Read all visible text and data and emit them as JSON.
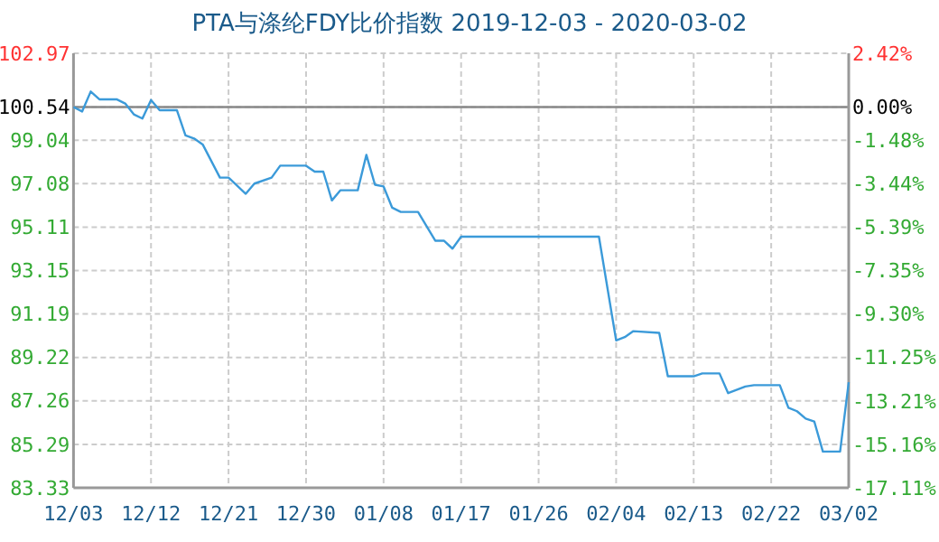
{
  "chart_data": {
    "type": "line",
    "title": "PTA与涤纶FDY比价指数 2019-12-03 - 2020-03-02",
    "x": [
      "2019-12-03",
      "2019-12-04",
      "2019-12-05",
      "2019-12-06",
      "2019-12-08",
      "2019-12-09",
      "2019-12-10",
      "2019-12-11",
      "2019-12-12",
      "2019-12-13",
      "2019-12-15",
      "2019-12-16",
      "2019-12-17",
      "2019-12-18",
      "2019-12-20",
      "2019-12-21",
      "2019-12-23",
      "2019-12-24",
      "2019-12-26",
      "2019-12-27",
      "2019-12-30",
      "2019-12-31",
      "2020-01-01",
      "2020-01-02",
      "2020-01-03",
      "2020-01-05",
      "2020-01-06",
      "2020-01-07",
      "2020-01-08",
      "2020-01-09",
      "2020-01-10",
      "2020-01-12",
      "2020-01-14",
      "2020-01-15",
      "2020-01-16",
      "2020-01-17",
      "2020-02-02",
      "2020-02-04",
      "2020-02-05",
      "2020-02-06",
      "2020-02-09",
      "2020-02-10",
      "2020-02-13",
      "2020-02-14",
      "2020-02-16",
      "2020-02-17",
      "2020-02-19",
      "2020-02-20",
      "2020-02-23",
      "2020-02-24",
      "2020-02-25",
      "2020-02-26",
      "2020-02-27",
      "2020-02-28",
      "2020-03-01",
      "2020-03-02"
    ],
    "series": [
      {
        "color": "#3b9ad9",
        "values": [
          100.54,
          100.34,
          101.24,
          100.89,
          100.89,
          100.7,
          100.21,
          100.02,
          100.86,
          100.4,
          100.4,
          99.26,
          99.12,
          98.85,
          97.35,
          97.35,
          96.62,
          97.08,
          97.35,
          97.89,
          97.89,
          97.62,
          97.62,
          96.32,
          96.78,
          96.78,
          98.38,
          97.03,
          96.95,
          95.99,
          95.8,
          95.8,
          94.5,
          94.5,
          94.14,
          94.68,
          94.68,
          89.99,
          90.14,
          90.41,
          90.33,
          88.37,
          88.37,
          88.5,
          88.5,
          87.61,
          87.91,
          87.97,
          87.97,
          86.95,
          86.79,
          86.46,
          86.33,
          84.97,
          84.97,
          88.1
        ]
      }
    ],
    "xlim": [
      "2019-12-03",
      "2020-03-02"
    ],
    "xticks": [
      {
        "value": "2019-12-03",
        "label": "12/03"
      },
      {
        "value": "2019-12-12",
        "label": "12/12"
      },
      {
        "value": "2019-12-21",
        "label": "12/21"
      },
      {
        "value": "2019-12-30",
        "label": "12/30"
      },
      {
        "value": "2020-01-08",
        "label": "01/08"
      },
      {
        "value": "2020-01-17",
        "label": "01/17"
      },
      {
        "value": "2020-01-26",
        "label": "01/26"
      },
      {
        "value": "2020-02-04",
        "label": "02/04"
      },
      {
        "value": "2020-02-13",
        "label": "02/13"
      },
      {
        "value": "2020-02-22",
        "label": "02/22"
      },
      {
        "value": "2020-03-02",
        "label": "03/02"
      }
    ],
    "ylim": [
      83.33,
      102.97
    ],
    "yticks": [
      83.33,
      85.29,
      87.26,
      89.22,
      91.19,
      93.15,
      95.11,
      97.08,
      99.04,
      100.54,
      102.97
    ],
    "y2lim": [
      -17.11,
      2.42
    ],
    "y2ticks": [
      {
        "value": -17.11,
        "label": "-17.11%"
      },
      {
        "value": -15.16,
        "label": "-15.16%"
      },
      {
        "value": -13.21,
        "label": "-13.21%"
      },
      {
        "value": -11.25,
        "label": "-11.25%"
      },
      {
        "value": -9.3,
        "label": "-9.30%"
      },
      {
        "value": -7.35,
        "label": "-7.35%"
      },
      {
        "value": -5.39,
        "label": "-5.39%"
      },
      {
        "value": -3.44,
        "label": "-3.44%"
      },
      {
        "value": -1.48,
        "label": "-1.48%"
      },
      {
        "value": 0,
        "label": "0.00%"
      },
      {
        "value": 2.42,
        "label": "2.42%"
      }
    ],
    "ref_lines": [
      {
        "axis": "y",
        "value": 100.54,
        "color": "#888888"
      }
    ],
    "grid": true
  }
}
